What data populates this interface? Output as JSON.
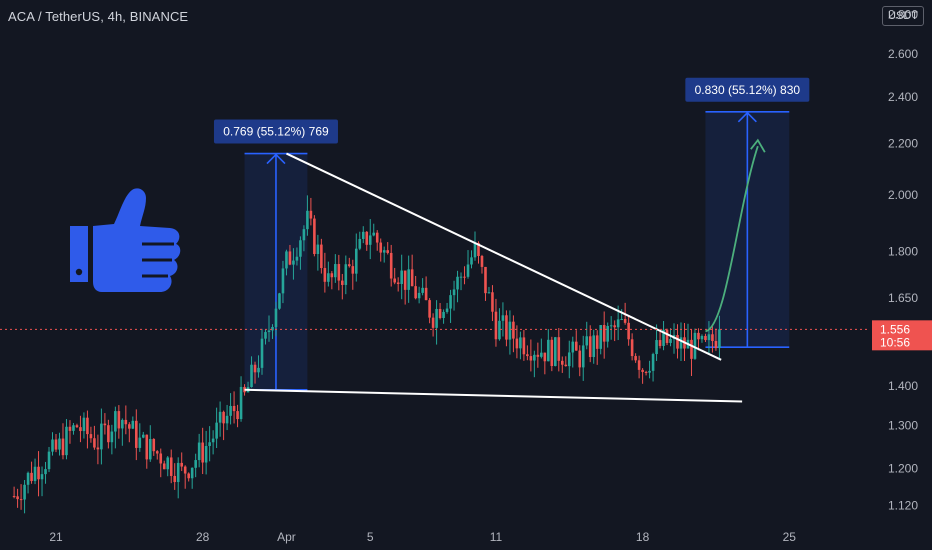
{
  "header": {
    "symbol": "ACA / TetherUS, 4h, BINANCE"
  },
  "currency_button": "USDT",
  "colors": {
    "background": "#131722",
    "up": "#26a69a",
    "down": "#ef5350",
    "measure": "#2962ff",
    "trendline": "#ffffff",
    "arrow": "#4caf7d",
    "thumb": "#2f5bea"
  },
  "price_tag": {
    "price": "1.556",
    "countdown": "10:56"
  },
  "measures": [
    {
      "label": "0.769 (55.12%) 769"
    },
    {
      "label": "0.830 (55.12%) 830"
    }
  ],
  "chart_data": {
    "type": "candlestick",
    "title": "ACA / TetherUS, 4h, BINANCE",
    "y_scale": "log",
    "ylim": [
      1.07,
      2.92
    ],
    "current_price": 1.556,
    "y_ticks": [
      "2.800",
      "2.600",
      "2.400",
      "2.200",
      "2.000",
      "1.800",
      "1.650",
      "1.400",
      "1.300",
      "1.200",
      "1.120"
    ],
    "x_ticks": [
      "21",
      "28",
      "Apr",
      "5",
      "11",
      "18",
      "25"
    ],
    "x_tick_dates": [
      "Mar 21",
      "Mar 28",
      "Apr 1",
      "Apr 5",
      "Apr 11",
      "Apr 18",
      "Apr 25"
    ],
    "bars_per_day": 6,
    "x_start": "Mar 19",
    "anchors": [
      [
        "Mar 19",
        1.14
      ],
      [
        "Mar 20",
        1.2
      ],
      [
        "Mar 21",
        1.24
      ],
      [
        "Mar 22",
        1.3
      ],
      [
        "Mar 23",
        1.26
      ],
      [
        "Mar 24",
        1.33
      ],
      [
        "Mar 25",
        1.26
      ],
      [
        "Mar 26",
        1.23
      ],
      [
        "Mar 27",
        1.19
      ],
      [
        "Mar 28",
        1.24
      ],
      [
        "Mar 29",
        1.31
      ],
      [
        "Mar 30",
        1.37
      ],
      [
        "Mar 31",
        1.52
      ],
      [
        "Apr 1",
        1.76
      ],
      [
        "Apr 2",
        1.9
      ],
      [
        "Apr 3",
        1.7
      ],
      [
        "Apr 4",
        1.74
      ],
      [
        "Apr 5",
        1.87
      ],
      [
        "Apr 6",
        1.76
      ],
      [
        "Apr 7",
        1.68
      ],
      [
        "Apr 8",
        1.6
      ],
      [
        "Apr 9",
        1.68
      ],
      [
        "Apr 10",
        1.8
      ],
      [
        "Apr 11",
        1.57
      ],
      [
        "Apr 12",
        1.53
      ],
      [
        "Apr 13",
        1.5
      ],
      [
        "Apr 14",
        1.49
      ],
      [
        "Apr 15",
        1.48
      ],
      [
        "Apr 16",
        1.53
      ],
      [
        "Apr 17",
        1.57
      ],
      [
        "Apr 18",
        1.45
      ],
      [
        "Apr 19",
        1.52
      ],
      [
        "Apr 20",
        1.51
      ],
      [
        "Apr 21",
        1.5
      ],
      [
        "Apr 21 18:00",
        1.556
      ]
    ],
    "annotations": [
      {
        "type": "trendline",
        "from": [
          "Apr 1",
          2.16
        ],
        "to": [
          "Apr 21 18:00",
          1.47
        ]
      },
      {
        "type": "trendline",
        "from": [
          "Mar 30",
          1.39
        ],
        "to": [
          "Apr 22 18:00",
          1.36
        ]
      },
      {
        "type": "measure",
        "from_date": "Mar 30",
        "to_date": "Apr 2",
        "low": 1.39,
        "high": 2.16,
        "label": "0.769 (55.12%) 769"
      },
      {
        "type": "measure",
        "from_date": "Apr 21",
        "to_date": "Apr 25",
        "low": 1.505,
        "high": 2.335,
        "label": "0.830 (55.12%) 830"
      },
      {
        "type": "projection_arrow",
        "points": [
          [
            "Apr 21",
            1.55
          ],
          [
            "Apr 22",
            1.62
          ],
          [
            "Apr 23",
            2.1
          ],
          [
            "Apr 23 12:00",
            2.19
          ]
        ]
      }
    ]
  }
}
